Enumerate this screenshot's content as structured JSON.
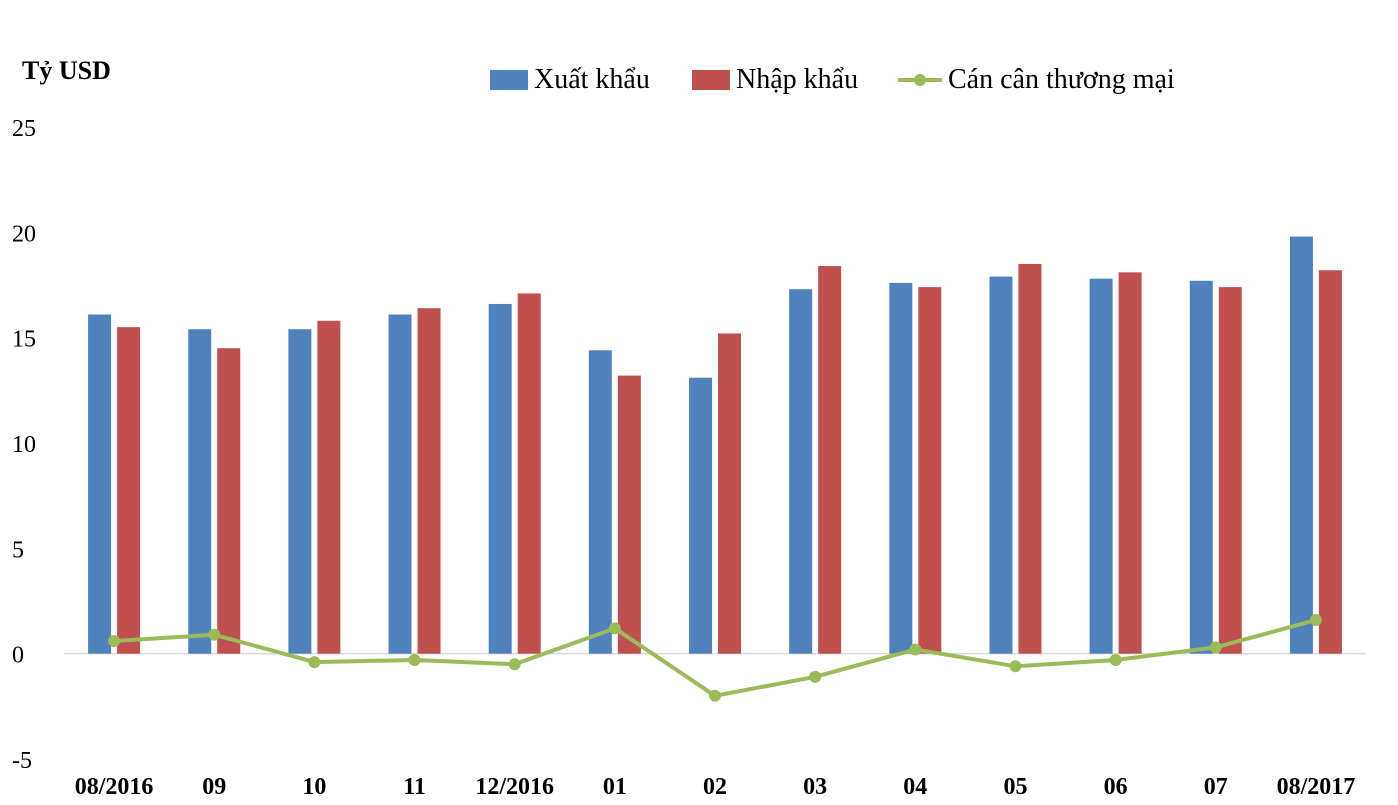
{
  "chart_data": {
    "type": "bar",
    "ylabel": "Tỷ USD",
    "ylim": [
      -5,
      25
    ],
    "yticks": [
      -5,
      0,
      5,
      10,
      15,
      20,
      25
    ],
    "categories": [
      "08/2016",
      "09",
      "10",
      "11",
      "12/2016",
      "01",
      "02",
      "03",
      "04",
      "05",
      "06",
      "07",
      "08/2017"
    ],
    "series": [
      {
        "name": "Xuất khẩu",
        "type": "bar",
        "color": "#4f81bd",
        "values": [
          16.1,
          15.4,
          15.4,
          16.1,
          16.6,
          14.4,
          13.1,
          17.3,
          17.6,
          17.9,
          17.8,
          17.7,
          19.8
        ]
      },
      {
        "name": "Nhập khẩu",
        "type": "bar",
        "color": "#c0504d",
        "values": [
          15.5,
          14.5,
          15.8,
          16.4,
          17.1,
          13.2,
          15.2,
          18.4,
          17.4,
          18.5,
          18.1,
          17.4,
          18.2
        ]
      },
      {
        "name": "Cán cân thương mại",
        "type": "line",
        "color": "#9bbb59",
        "values": [
          0.6,
          0.9,
          -0.4,
          -0.3,
          -0.5,
          1.2,
          -2.0,
          -1.1,
          0.2,
          -0.6,
          -0.3,
          0.3,
          1.6
        ]
      }
    ],
    "grid": false,
    "legend_position": "top"
  }
}
